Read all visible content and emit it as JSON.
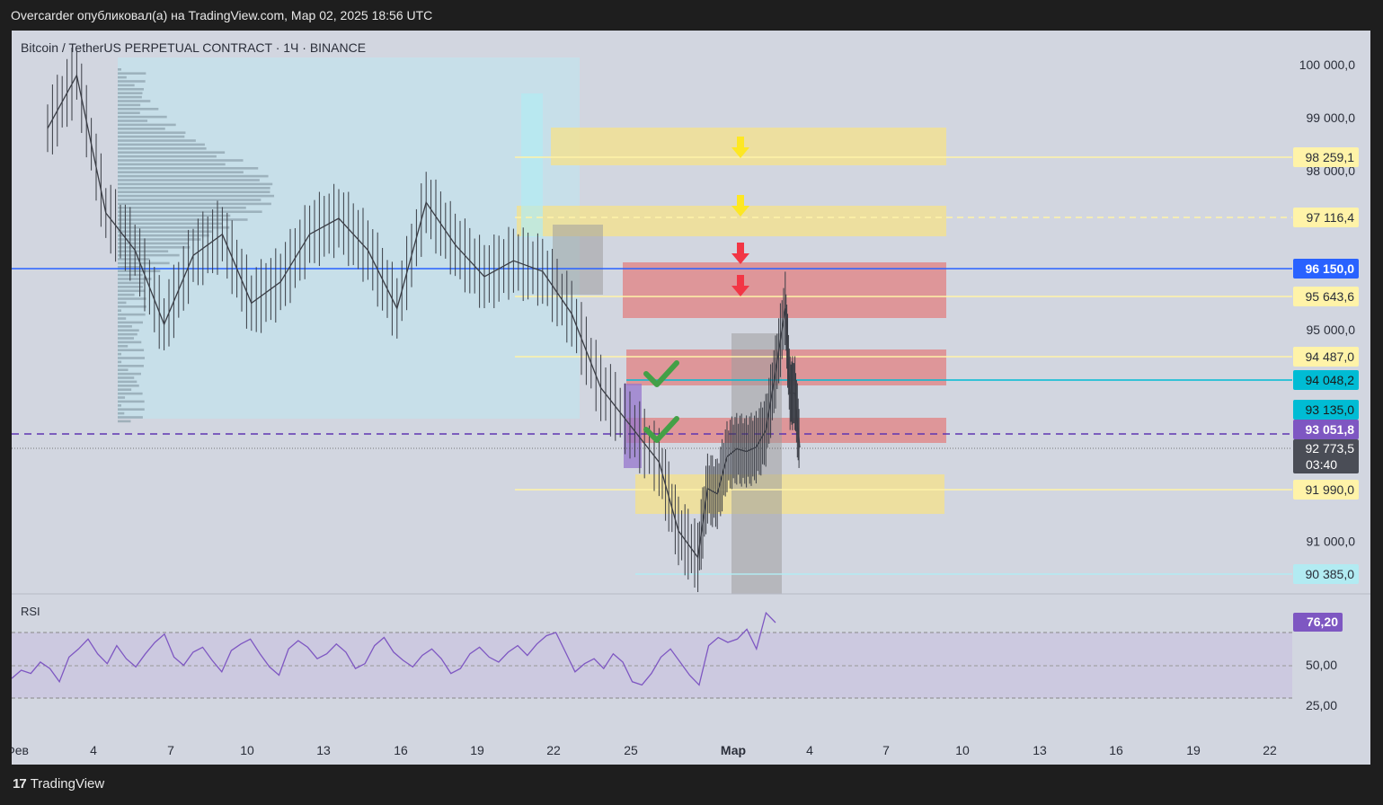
{
  "header": {
    "publish_line": "Overcarder опубликовал(а) на TradingView.com, Мар 02, 2025 18:56 UTC"
  },
  "footer": {
    "brand": "TradingView"
  },
  "chart_data": [
    {
      "type": "candlestick",
      "title": "Bitcoin / TetherUS PERPETUAL CONTRACT · 1Ч · BINANCE",
      "x_ticks": [
        "Фев",
        "4",
        "7",
        "10",
        "13",
        "16",
        "19",
        "22",
        "25",
        "Мар",
        "4",
        "7",
        "10",
        "13",
        "16",
        "19",
        "22"
      ],
      "y_ticks": [
        "100 000,0",
        "99 000,0",
        "98 000,0",
        "95 000,0",
        "91 000,0"
      ],
      "ylim": [
        90300,
        100500
      ],
      "series": [
        {
          "points": [
            [
              0,
              98800
            ],
            [
              3,
              99800
            ],
            [
              6,
              97200
            ],
            [
              9,
              96500
            ],
            [
              12,
              95100
            ],
            [
              15,
              96400
            ],
            [
              18,
              96800
            ],
            [
              21,
              95500
            ],
            [
              24,
              95900
            ],
            [
              27,
              96800
            ],
            [
              30,
              97100
            ],
            [
              33,
              96500
            ],
            [
              36,
              95400
            ],
            [
              39,
              97400
            ],
            [
              42,
              96600
            ],
            [
              45,
              96000
            ],
            [
              48,
              96300
            ],
            [
              51,
              96100
            ],
            [
              54,
              95300
            ],
            [
              57,
              93900
            ],
            [
              60,
              93200
            ],
            [
              63,
              92500
            ],
            [
              65,
              91200
            ],
            [
              67,
              90700
            ],
            [
              68,
              92000
            ],
            [
              69,
              91900
            ],
            [
              70,
              92600
            ],
            [
              71,
              92750
            ],
            [
              72,
              92700
            ],
            [
              73,
              92780
            ],
            [
              74,
              93100
            ],
            [
              75,
              94200
            ],
            [
              76,
              95400
            ],
            [
              76.5,
              93800
            ],
            [
              77,
              93800
            ],
            [
              77.5,
              92773.5
            ]
          ]
        }
      ],
      "price_levels": [
        {
          "label": "98 259,1",
          "kind": "zone-line",
          "color": "#fff3a8",
          "text_color": "#2a2e39"
        },
        {
          "label": "97 116,4",
          "kind": "dashed-zone-line",
          "color": "#fff3a8",
          "text_color": "#2a2e39"
        },
        {
          "label": "96 150,0",
          "kind": "level",
          "color": "#2962ff",
          "text_color": "#ffffff"
        },
        {
          "label": "95 643,6",
          "kind": "zone-line",
          "color": "#fff3a8",
          "text_color": "#2a2e39"
        },
        {
          "label": "94 487,0",
          "kind": "zone-line",
          "color": "#fff3a8",
          "text_color": "#2a2e39"
        },
        {
          "label": "94 048,2",
          "kind": "level",
          "color": "#00bcd4",
          "text_color": "#1a1a1a"
        },
        {
          "label": "93 135,0",
          "kind": "level",
          "color": "#00bcd4",
          "text_color": "#1a1a1a"
        },
        {
          "label": "93 051,8",
          "kind": "level",
          "color": "#7e57c2",
          "text_color": "#ffffff"
        },
        {
          "label": "91 990,0",
          "kind": "zone-line",
          "color": "#fff3a8",
          "text_color": "#2a2e39"
        },
        {
          "label": "90 385,0",
          "kind": "level",
          "color": "#b2ebf2",
          "text_color": "#2a2e39"
        }
      ],
      "last_price": {
        "label": "92 773,5",
        "countdown": "03:40",
        "color": "#4a4d56"
      },
      "zones": [
        {
          "kind": "supply",
          "color": "#f5e18a",
          "arrow": "down",
          "arrow_color": "#fde724"
        },
        {
          "kind": "supply",
          "color": "#f5e18a",
          "arrow": "down",
          "arrow_color": "#fde724"
        },
        {
          "kind": "resistance",
          "color": "#e57373",
          "arrow": "down",
          "arrow_color": "#f23645"
        },
        {
          "kind": "resistance-hit",
          "color": "#e57373",
          "check_color": "#43a047"
        },
        {
          "kind": "resistance-hit",
          "color": "#e57373",
          "check_color": "#43a047"
        },
        {
          "kind": "demand",
          "color": "#f5e18a"
        }
      ]
    },
    {
      "type": "line",
      "title": "RSI",
      "y_ticks": [
        "50,00",
        "25,00"
      ],
      "ylim": [
        10,
        90
      ],
      "band": [
        30,
        70
      ],
      "last_value": "76,20",
      "color": "#7e57c2",
      "series": [
        {
          "values": [
            42,
            47,
            45,
            52,
            48,
            40,
            55,
            60,
            66,
            57,
            51,
            62,
            54,
            49,
            57,
            64,
            69,
            55,
            50,
            58,
            61,
            53,
            46,
            59,
            63,
            66,
            57,
            49,
            44,
            60,
            65,
            61,
            54,
            57,
            63,
            58,
            48,
            51,
            62,
            67,
            58,
            53,
            49,
            56,
            60,
            54,
            45,
            48,
            57,
            61,
            55,
            52,
            58,
            62,
            56,
            63,
            68,
            70,
            58,
            46,
            51,
            54,
            48,
            57,
            52,
            40,
            38,
            45,
            55,
            60,
            52,
            44,
            38,
            62,
            67,
            64,
            66,
            72,
            60,
            82,
            76
          ]
        }
      ]
    }
  ]
}
